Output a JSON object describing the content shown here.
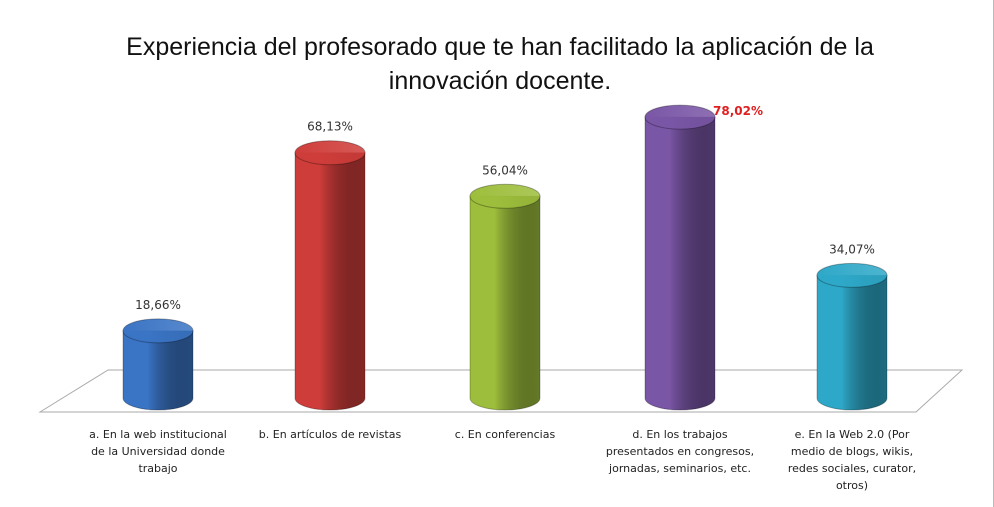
{
  "chart_data": {
    "type": "cylinder",
    "title": "Experiencia del profesorado que te han facilitado la aplicación de la innovación docente.",
    "categories": [
      "a. En la web institucional de la Universidad donde trabajo",
      "b. En artículos de revistas",
      "c. En conferencias",
      "d. En los trabajos presentados en congresos, jornadas, seminarios, etc.",
      "e. En la Web 2.0 (Por medio de blogs, wikis, redes sociales, curator, otros)"
    ],
    "values": [
      18.66,
      68.13,
      56.04,
      78.02,
      34.07
    ],
    "value_labels": [
      "18,66%",
      "68,13%",
      "56,04%",
      "78,02%",
      "34,07%"
    ],
    "colors": [
      "#3a74c4",
      "#cf3d3a",
      "#9dbe3c",
      "#7a56a6",
      "#2ea8c8"
    ],
    "value_label_colors": [
      "#333333",
      "#333333",
      "#333333",
      "#e02020",
      "#333333"
    ]
  }
}
